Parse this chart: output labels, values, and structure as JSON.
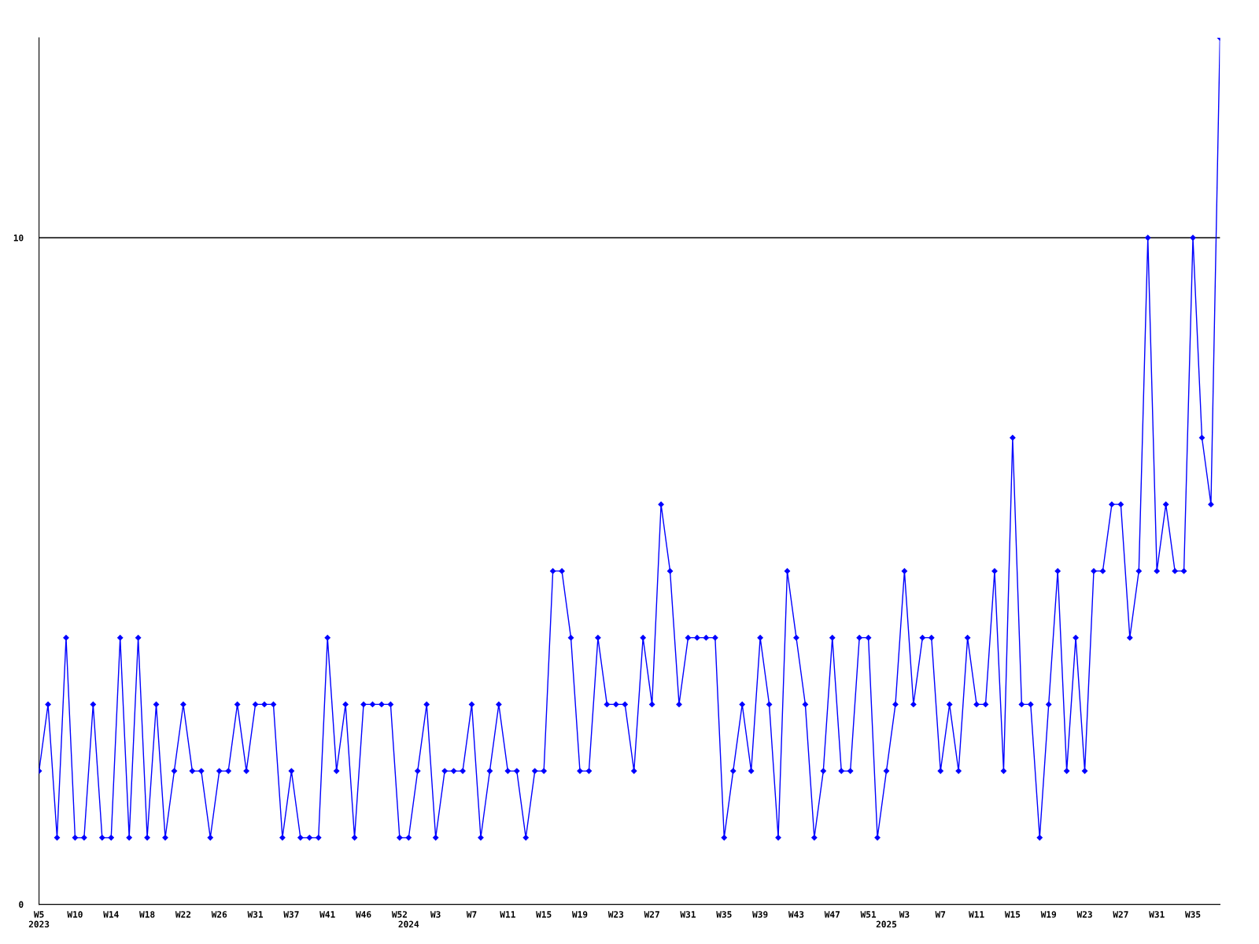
{
  "chart_data": {
    "type": "line",
    "categories": [
      "W5\n2023",
      null,
      null,
      null,
      "W10",
      null,
      null,
      null,
      "W14",
      null,
      null,
      null,
      "W18",
      null,
      null,
      null,
      "W22",
      null,
      null,
      null,
      "W26",
      null,
      null,
      null,
      "W31",
      null,
      null,
      null,
      "W37",
      null,
      null,
      null,
      "W41",
      null,
      null,
      null,
      "W46",
      null,
      null,
      null,
      "W52",
      "\n2024",
      null,
      null,
      "W3",
      null,
      null,
      null,
      "W7",
      null,
      null,
      null,
      "W11",
      null,
      null,
      null,
      "W15",
      null,
      null,
      null,
      "W19",
      null,
      null,
      null,
      "W23",
      null,
      null,
      null,
      "W27",
      null,
      null,
      null,
      "W31",
      null,
      null,
      null,
      "W35",
      null,
      null,
      null,
      "W39",
      null,
      null,
      null,
      "W43",
      null,
      null,
      null,
      "W47",
      null,
      null,
      null,
      "W51",
      null,
      "\n2025",
      null,
      "W3",
      null,
      null,
      null,
      "W7",
      null,
      null,
      null,
      "W11",
      null,
      null,
      null,
      "W15",
      null,
      null,
      null,
      "W19",
      null,
      null,
      null,
      "W23",
      null,
      null,
      null,
      "W27",
      null,
      null,
      null,
      "W31",
      null,
      null,
      null,
      "W35",
      null,
      null,
      null
    ],
    "series": [
      {
        "color": "#0000ff",
        "values": [
          2,
          3,
          1,
          4,
          1,
          1,
          3,
          1,
          1,
          4,
          1,
          4,
          1,
          3,
          1,
          2,
          3,
          2,
          2,
          1,
          2,
          2,
          3,
          2,
          3,
          3,
          3,
          1,
          2,
          1,
          1,
          1,
          4,
          2,
          3,
          1,
          3,
          3,
          3,
          3,
          1,
          1,
          2,
          3,
          1,
          2,
          2,
          2,
          3,
          1,
          2,
          3,
          2,
          2,
          1,
          2,
          2,
          5,
          5,
          4,
          2,
          2,
          4,
          3,
          3,
          3,
          2,
          4,
          3,
          6,
          5,
          3,
          4,
          4,
          4,
          4,
          1,
          2,
          3,
          2,
          4,
          3,
          1,
          5,
          4,
          3,
          1,
          2,
          4,
          2,
          2,
          4,
          4,
          1,
          2,
          3,
          5,
          3,
          4,
          4,
          2,
          3,
          2,
          4,
          3,
          3,
          5,
          2,
          7,
          3,
          3,
          1,
          3,
          5,
          2,
          4,
          2,
          5,
          5,
          6,
          6,
          4,
          5,
          10,
          5,
          6,
          5,
          5,
          10,
          7,
          6,
          13
        ]
      }
    ],
    "ylim": [
      0,
      13
    ],
    "yticks": [
      0,
      10
    ],
    "grid": "y",
    "legend": false,
    "marker": "diamond",
    "line_style": "solid"
  }
}
